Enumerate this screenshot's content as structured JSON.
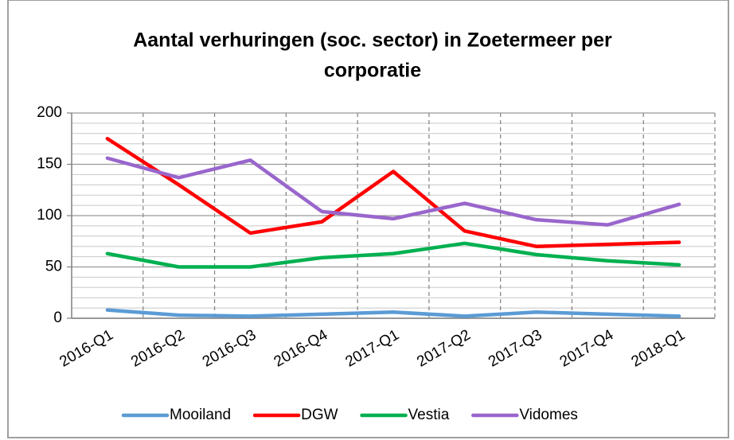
{
  "chart_data": {
    "type": "line",
    "title": [
      "Aantal verhuringen (soc. sector) in Zoetermeer per",
      "corporatie"
    ],
    "categories": [
      "2016-Q1",
      "2016-Q2",
      "2016-Q3",
      "2016-Q4",
      "2017-Q1",
      "2017-Q2",
      "2017-Q3",
      "2017-Q4",
      "2018-Q1"
    ],
    "series": [
      {
        "name": "Mooiland",
        "color": "#5b9bd5",
        "values": [
          8,
          3,
          2,
          4,
          6,
          2,
          6,
          4,
          2
        ]
      },
      {
        "name": "DGW",
        "color": "#ff0000",
        "values": [
          175,
          130,
          83,
          94,
          143,
          85,
          70,
          72,
          74
        ]
      },
      {
        "name": "Vestia",
        "color": "#00b050",
        "values": [
          63,
          50,
          50,
          59,
          63,
          73,
          62,
          56,
          52
        ]
      },
      {
        "name": "Vidomes",
        "color": "#9966cc",
        "values": [
          156,
          137,
          154,
          104,
          97,
          112,
          96,
          91,
          111
        ]
      }
    ],
    "ylim": [
      0,
      200
    ],
    "yticks": [
      0,
      50,
      100,
      150,
      200
    ],
    "minor_yticks": [
      10,
      20,
      30,
      40,
      60,
      70,
      80,
      90,
      110,
      120,
      130,
      140,
      160,
      170,
      180,
      190
    ],
    "grid": true,
    "legend": "bottom"
  }
}
